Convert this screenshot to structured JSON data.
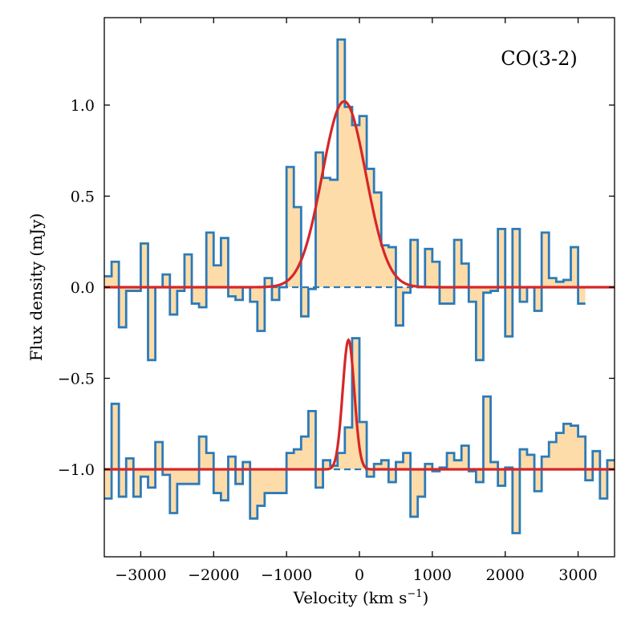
{
  "chart_data": {
    "type": "step",
    "annotation": "CO(3-2)",
    "xlabel": "Velocity (km s",
    "xlabel_sup": "−1",
    "xlabel_close": ")",
    "ylabel": "Flux density (mJy)",
    "xlim": [
      -3500,
      3500
    ],
    "ylim": [
      -1.48,
      1.48
    ],
    "xticks": [
      {
        "value": -3000,
        "label": "−3000"
      },
      {
        "value": -2000,
        "label": "−2000"
      },
      {
        "value": -1000,
        "label": "−1000"
      },
      {
        "value": 0,
        "label": "0"
      },
      {
        "value": 1000,
        "label": "1000"
      },
      {
        "value": 2000,
        "label": "2000"
      },
      {
        "value": 3000,
        "label": "3000"
      }
    ],
    "yticks": [
      {
        "value": -1.0,
        "label": "−1.0"
      },
      {
        "value": -0.5,
        "label": "−0.5"
      },
      {
        "value": 0.0,
        "label": "0.0"
      },
      {
        "value": 0.5,
        "label": "0.5"
      },
      {
        "value": 1.0,
        "label": "1.0"
      }
    ],
    "colors": {
      "step_line": "#2b7bb9",
      "fill": "#fddcaa",
      "fit_line": "#d62728",
      "baseline": "#2b7bb9"
    },
    "bin_start": -3500,
    "bin_width": 100,
    "series": [
      {
        "name": "upper spectrum",
        "offset": 0.0,
        "values": [
          0.06,
          0.14,
          -0.22,
          -0.02,
          -0.02,
          0.24,
          -0.4,
          0.0,
          0.07,
          -0.15,
          -0.02,
          0.18,
          -0.09,
          -0.11,
          0.3,
          0.12,
          0.27,
          -0.05,
          -0.07,
          0.0,
          -0.08,
          -0.24,
          0.05,
          -0.07,
          0.0,
          0.66,
          0.44,
          -0.16,
          -0.01,
          0.74,
          0.6,
          0.59,
          1.36,
          0.99,
          0.89,
          0.94,
          0.65,
          0.52,
          0.23,
          0.22,
          -0.21,
          -0.03,
          0.26,
          0.0,
          0.21,
          0.14,
          -0.09,
          -0.09,
          0.26,
          0.13,
          -0.08,
          -0.4,
          -0.03,
          -0.02,
          0.32,
          -0.27,
          0.32,
          -0.08,
          0.0,
          -0.13,
          0.3,
          0.05,
          0.03,
          0.04,
          0.22,
          -0.09
        ]
      },
      {
        "name": "lower spectrum",
        "offset": -1.0,
        "values": [
          -1.16,
          -0.64,
          -1.15,
          -0.94,
          -1.15,
          -1.04,
          -1.1,
          -0.85,
          -1.03,
          -1.24,
          -1.08,
          -1.08,
          -1.08,
          -0.82,
          -0.91,
          -1.13,
          -1.17,
          -0.93,
          -1.08,
          -0.96,
          -1.27,
          -1.2,
          -1.13,
          -1.13,
          -1.13,
          -0.91,
          -0.89,
          -0.82,
          -0.68,
          -1.1,
          -0.95,
          -0.98,
          -0.91,
          -0.77,
          -0.28,
          -0.74,
          -1.04,
          -0.97,
          -0.95,
          -1.07,
          -0.96,
          -0.91,
          -1.26,
          -1.15,
          -0.97,
          -1.01,
          -0.99,
          -0.91,
          -0.95,
          -0.87,
          -1.01,
          -1.07,
          -0.6,
          -0.96,
          -1.09,
          -0.99,
          -1.35,
          -0.89,
          -0.92,
          -1.12,
          -0.93,
          -0.85,
          -0.8,
          -0.75,
          -0.76,
          -0.82,
          -1.06,
          -0.9,
          -1.16,
          -0.95
        ]
      }
    ],
    "fits": [
      {
        "name": "gaussian fit (upper)",
        "amplitude": 1.02,
        "center": -210,
        "sigma": 300,
        "baseline": 0.0
      },
      {
        "name": "gaussian fit (lower)",
        "amplitude": 0.71,
        "center": -150,
        "sigma": 80,
        "baseline": -1.0
      }
    ],
    "zero_lines": [
      0.0,
      -1.0
    ]
  }
}
